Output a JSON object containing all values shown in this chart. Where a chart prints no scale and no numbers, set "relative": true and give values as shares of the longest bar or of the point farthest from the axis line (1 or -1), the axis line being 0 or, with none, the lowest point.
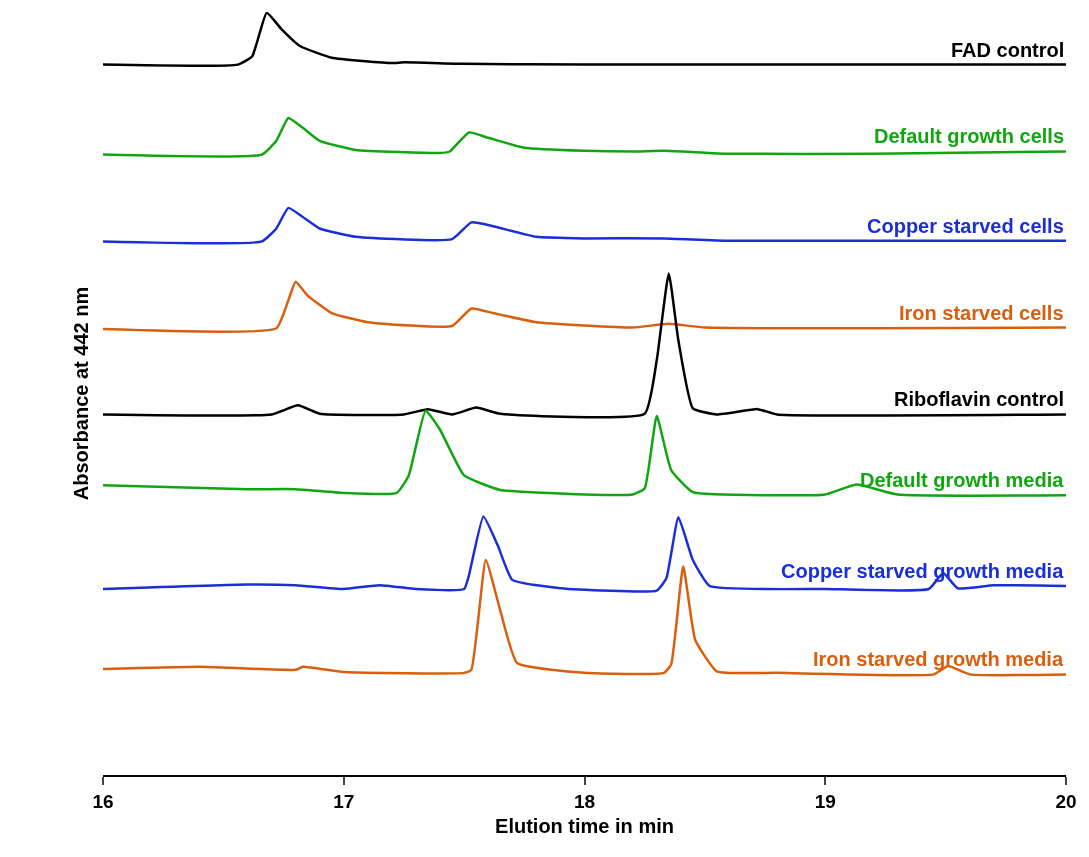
{
  "chart_data": {
    "type": "line",
    "relative": true,
    "xlabel": "Elution time in min",
    "ylabel": "Absorbance at 442 nm",
    "xlim": [
      16,
      20
    ],
    "xticks": [
      16,
      17,
      18,
      19,
      20
    ],
    "legend": false,
    "marker": "none",
    "line_style": "solid",
    "series": [
      {
        "name": "FAD control",
        "color": "#000000",
        "x": [
          16,
          16.56,
          16.62,
          16.68,
          16.74,
          16.82,
          16.95,
          17.2,
          17.25,
          17.5,
          18,
          20
        ],
        "values": [
          0.932,
          0.932,
          0.943,
          1.0,
          0.979,
          0.956,
          0.941,
          0.934,
          0.935,
          0.933,
          0.932,
          0.932
        ]
      },
      {
        "name": "Default growth cells",
        "color": "#11a611",
        "x": [
          16,
          16.66,
          16.72,
          16.77,
          16.83,
          16.9,
          17.05,
          17.4,
          17.44,
          17.52,
          17.6,
          17.75,
          18,
          18.2,
          18.33,
          18.6,
          19.2,
          20
        ],
        "values": [
          0.814,
          0.814,
          0.832,
          0.862,
          0.849,
          0.832,
          0.82,
          0.816,
          0.818,
          0.843,
          0.836,
          0.823,
          0.819,
          0.818,
          0.819,
          0.815,
          0.815,
          0.818
        ]
      },
      {
        "name": "Copper starved cells",
        "color": "#1a2fd6",
        "x": [
          16,
          16.66,
          16.72,
          16.77,
          16.83,
          16.9,
          17.05,
          17.45,
          17.53,
          17.62,
          17.8,
          18,
          18.33,
          18.6,
          20
        ],
        "values": [
          0.7,
          0.7,
          0.717,
          0.744,
          0.732,
          0.717,
          0.706,
          0.703,
          0.725,
          0.72,
          0.706,
          0.704,
          0.704,
          0.701,
          0.701
        ]
      },
      {
        "name": "Iron starved cells",
        "color": "#d95f0e",
        "x": [
          16,
          16.72,
          16.77,
          16.8,
          16.85,
          16.95,
          17.1,
          17.45,
          17.53,
          17.62,
          17.8,
          18.2,
          18.35,
          18.5,
          20
        ],
        "values": [
          0.585,
          0.586,
          0.623,
          0.647,
          0.629,
          0.606,
          0.594,
          0.589,
          0.612,
          0.606,
          0.594,
          0.587,
          0.592,
          0.587,
          0.587
        ]
      },
      {
        "name": "Riboflavin control",
        "color": "#000000",
        "x": [
          16,
          16.7,
          16.81,
          16.9,
          17.25,
          17.35,
          17.45,
          17.55,
          17.65,
          18.25,
          18.3,
          18.35,
          18.39,
          18.45,
          18.55,
          18.72,
          18.8,
          20
        ],
        "values": [
          0.473,
          0.473,
          0.485,
          0.474,
          0.473,
          0.48,
          0.473,
          0.482,
          0.474,
          0.474,
          0.544,
          0.658,
          0.57,
          0.481,
          0.473,
          0.48,
          0.473,
          0.473
        ]
      },
      {
        "name": "Default growth media",
        "color": "#11a611",
        "x": [
          16,
          16.6,
          16.8,
          17.0,
          17.22,
          17.27,
          17.34,
          17.4,
          17.5,
          17.65,
          18.0,
          18.2,
          18.25,
          18.3,
          18.36,
          18.45,
          18.8,
          19.0,
          19.13,
          19.3,
          20
        ],
        "values": [
          0.38,
          0.375,
          0.375,
          0.37,
          0.37,
          0.393,
          0.478,
          0.453,
          0.393,
          0.374,
          0.368,
          0.368,
          0.376,
          0.471,
          0.4,
          0.371,
          0.367,
          0.368,
          0.381,
          0.368,
          0.367
        ]
      },
      {
        "name": "Copper starved growth media",
        "color": "#1a2fd6",
        "x": [
          16,
          16.6,
          16.8,
          17.0,
          17.15,
          17.3,
          17.5,
          17.52,
          17.58,
          17.64,
          17.7,
          17.9,
          18.3,
          18.34,
          18.39,
          18.45,
          18.52,
          19.0,
          19.43,
          19.49,
          19.55,
          19.7,
          20
        ],
        "values": [
          0.244,
          0.25,
          0.249,
          0.244,
          0.249,
          0.244,
          0.244,
          0.262,
          0.339,
          0.301,
          0.256,
          0.245,
          0.242,
          0.258,
          0.338,
          0.282,
          0.248,
          0.244,
          0.244,
          0.265,
          0.245,
          0.249,
          0.248
        ]
      },
      {
        "name": "Iron starved growth media",
        "color": "#d95f0e",
        "x": [
          16,
          16.4,
          16.8,
          16.83,
          17.0,
          17.5,
          17.53,
          17.59,
          17.65,
          17.72,
          18.0,
          18.33,
          18.36,
          18.41,
          18.46,
          18.55,
          18.8,
          19.45,
          19.51,
          19.6,
          20
        ],
        "values": [
          0.139,
          0.142,
          0.138,
          0.142,
          0.135,
          0.134,
          0.138,
          0.282,
          0.216,
          0.147,
          0.134,
          0.134,
          0.145,
          0.274,
          0.177,
          0.136,
          0.134,
          0.132,
          0.143,
          0.132,
          0.132
        ]
      }
    ]
  }
}
